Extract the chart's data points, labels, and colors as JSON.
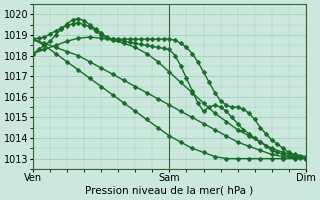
{
  "xlabel": "Pression niveau de la mer( hPa )",
  "bg_color": "#cce8dc",
  "grid_color": "#99ccbb",
  "line_color": "#1a6b2a",
  "xlim": [
    0,
    48
  ],
  "ylim": [
    1012.5,
    1020.5
  ],
  "yticks": [
    1013,
    1014,
    1015,
    1016,
    1017,
    1018,
    1019,
    1020
  ],
  "xtick_positions": [
    0,
    24,
    48
  ],
  "xtick_labels": [
    "Ven",
    "Sam",
    "Dim"
  ],
  "series": [
    {
      "x": [
        0,
        1,
        2,
        3,
        4,
        5,
        6,
        7,
        8,
        9,
        10,
        11,
        12,
        13,
        14,
        15,
        16,
        17,
        18,
        19,
        20,
        21,
        22,
        23,
        24,
        25,
        26,
        27,
        28,
        29,
        30,
        31,
        32,
        33,
        34,
        35,
        36,
        37,
        38,
        39,
        40,
        41,
        42,
        43,
        44,
        45,
        46,
        47,
        48
      ],
      "y": [
        1018.8,
        1018.85,
        1018.9,
        1019.05,
        1019.2,
        1019.35,
        1019.45,
        1019.55,
        1019.6,
        1019.5,
        1019.4,
        1019.2,
        1019.0,
        1018.85,
        1018.8,
        1018.8,
        1018.8,
        1018.8,
        1018.8,
        1018.8,
        1018.8,
        1018.8,
        1018.8,
        1018.8,
        1018.8,
        1018.75,
        1018.6,
        1018.4,
        1018.1,
        1017.7,
        1017.2,
        1016.7,
        1016.2,
        1015.8,
        1015.6,
        1015.5,
        1015.5,
        1015.4,
        1015.2,
        1014.9,
        1014.5,
        1014.2,
        1013.9,
        1013.7,
        1013.5,
        1013.3,
        1013.2,
        1013.15,
        1013.1
      ]
    },
    {
      "x": [
        0,
        1,
        2,
        3,
        4,
        5,
        6,
        7,
        8,
        9,
        10,
        11,
        12,
        13,
        14,
        15,
        16,
        17,
        18,
        19,
        20,
        21,
        22,
        23,
        24,
        25,
        26,
        27,
        28,
        29,
        30,
        31,
        32,
        33,
        34,
        35,
        36,
        37,
        38,
        39,
        40,
        41,
        42,
        43,
        44,
        45,
        46,
        47,
        48
      ],
      "y": [
        1018.1,
        1018.3,
        1018.5,
        1018.7,
        1019.0,
        1019.3,
        1019.55,
        1019.75,
        1019.8,
        1019.7,
        1019.5,
        1019.3,
        1019.1,
        1018.9,
        1018.8,
        1018.75,
        1018.7,
        1018.65,
        1018.6,
        1018.55,
        1018.5,
        1018.45,
        1018.4,
        1018.35,
        1018.3,
        1018.0,
        1017.5,
        1016.9,
        1016.3,
        1015.7,
        1015.3,
        1015.5,
        1015.6,
        1015.5,
        1015.3,
        1015.0,
        1014.7,
        1014.4,
        1014.2,
        1014.0,
        1013.8,
        1013.6,
        1013.4,
        1013.3,
        1013.2,
        1013.15,
        1013.1,
        1013.05,
        1013.0
      ]
    },
    {
      "x": [
        0,
        2,
        4,
        6,
        8,
        10,
        12,
        14,
        16,
        18,
        20,
        22,
        24,
        26,
        28,
        30,
        32,
        34,
        36,
        38,
        40,
        42,
        44,
        46,
        48
      ],
      "y": [
        1018.1,
        1018.3,
        1018.5,
        1018.7,
        1018.85,
        1018.9,
        1018.85,
        1018.75,
        1018.6,
        1018.4,
        1018.1,
        1017.7,
        1017.2,
        1016.7,
        1016.2,
        1015.7,
        1015.2,
        1014.8,
        1014.4,
        1014.1,
        1013.8,
        1013.5,
        1013.3,
        1013.15,
        1013.0
      ]
    },
    {
      "x": [
        0,
        2,
        4,
        6,
        8,
        10,
        12,
        14,
        16,
        18,
        20,
        22,
        24,
        26,
        28,
        30,
        32,
        34,
        36,
        38,
        40,
        42,
        44,
        46,
        48
      ],
      "y": [
        1018.8,
        1018.6,
        1018.4,
        1018.2,
        1018.0,
        1017.7,
        1017.4,
        1017.1,
        1016.8,
        1016.5,
        1016.2,
        1015.9,
        1015.6,
        1015.3,
        1015.0,
        1014.7,
        1014.4,
        1014.1,
        1013.8,
        1013.6,
        1013.4,
        1013.2,
        1013.1,
        1013.05,
        1013.0
      ]
    },
    {
      "x": [
        0,
        2,
        4,
        6,
        8,
        10,
        12,
        14,
        16,
        18,
        20,
        22,
        24,
        26,
        28,
        30,
        32,
        34,
        36,
        38,
        40,
        42,
        44,
        46,
        48
      ],
      "y": [
        1018.8,
        1018.5,
        1018.1,
        1017.7,
        1017.3,
        1016.9,
        1016.5,
        1016.1,
        1015.7,
        1015.3,
        1014.9,
        1014.5,
        1014.1,
        1013.8,
        1013.5,
        1013.3,
        1013.1,
        1013.0,
        1013.0,
        1013.0,
        1013.0,
        1013.0,
        1013.0,
        1013.0,
        1013.0
      ]
    }
  ],
  "marker": "D",
  "marker_size": 2.5,
  "linewidth": 1.0
}
